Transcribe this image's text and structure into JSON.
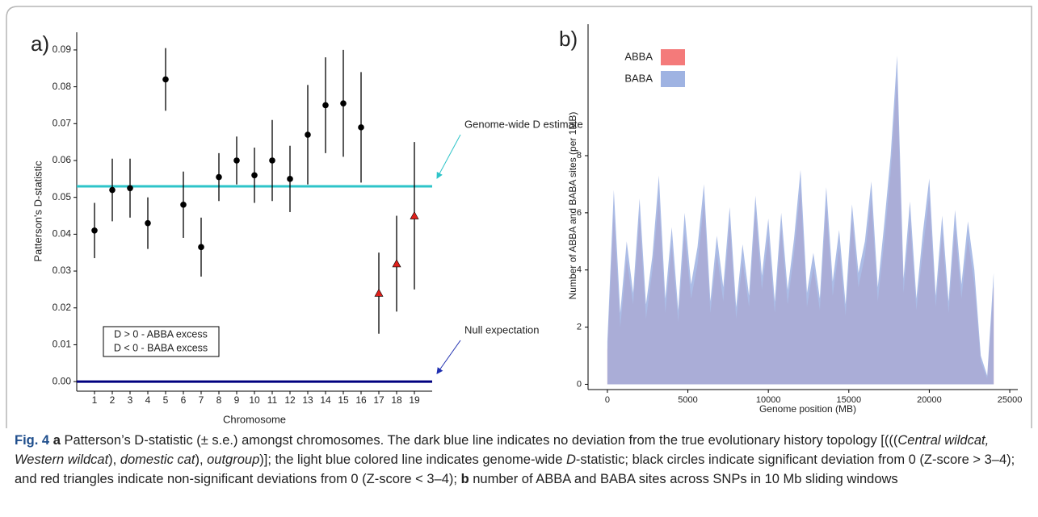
{
  "chart_data": [
    {
      "type": "scatter",
      "panel_label": "a)",
      "ylabel": "Patterson's D-statistic",
      "xlabel": "Chromosome",
      "categories": [
        "1",
        "2",
        "3",
        "4",
        "5",
        "6",
        "7",
        "8",
        "9",
        "10",
        "11",
        "12",
        "13",
        "14",
        "15",
        "16",
        "17",
        "18",
        "19"
      ],
      "values": [
        0.041,
        0.052,
        0.0525,
        0.043,
        0.082,
        0.048,
        0.0365,
        0.0555,
        0.06,
        0.056,
        0.06,
        0.055,
        0.067,
        0.075,
        0.0755,
        0.069,
        0.024,
        0.032,
        0.045
      ],
      "errors": [
        0.0075,
        0.0085,
        0.008,
        0.007,
        0.0085,
        0.009,
        0.008,
        0.0065,
        0.0065,
        0.0075,
        0.011,
        0.009,
        0.0135,
        0.013,
        0.0145,
        0.015,
        0.011,
        0.013,
        0.02
      ],
      "markers": [
        "circle",
        "circle",
        "circle",
        "circle",
        "circle",
        "circle",
        "circle",
        "circle",
        "circle",
        "circle",
        "circle",
        "circle",
        "circle",
        "circle",
        "circle",
        "circle",
        "triangle",
        "triangle",
        "triangle"
      ],
      "marker_colors": {
        "circle": "#000000",
        "triangle": "#e0201b"
      },
      "ylim": [
        -0.0026,
        0.0948
      ],
      "yticks": [
        {
          "value": 0,
          "label": "0.00"
        },
        0.01,
        0.02,
        0.03,
        0.04,
        0.05,
        0.06,
        0.07,
        0.08,
        0.09
      ],
      "reference_lines": [
        {
          "value": 0.053,
          "color": "#2ec4c9",
          "label": "Genome-wide D estimate"
        },
        {
          "value": 0,
          "color": "#00007f",
          "label": "Null expectation"
        }
      ],
      "legend_box": [
        "D > 0 - ABBA excess",
        "D < 0 - BABA excess"
      ]
    },
    {
      "type": "area",
      "panel_label": "b)",
      "ylabel": "Number of ABBA and BABA sites (per 1MB)",
      "xlabel": "Genome position (MB)",
      "x": [
        0,
        400,
        800,
        1200,
        1600,
        2000,
        2400,
        2800,
        3200,
        3600,
        4000,
        4400,
        4800,
        5200,
        5600,
        6000,
        6400,
        6800,
        7200,
        7600,
        8000,
        8400,
        8800,
        9200,
        9600,
        10000,
        10400,
        10800,
        11200,
        11600,
        12000,
        12400,
        12800,
        13200,
        13600,
        14000,
        14400,
        14800,
        15200,
        15600,
        16000,
        16400,
        16800,
        17200,
        17600,
        18000,
        18400,
        18800,
        19200,
        19600,
        20000,
        20400,
        20800,
        21200,
        21600,
        22000,
        22400,
        22800,
        23200,
        23600,
        24000
      ],
      "series": [
        {
          "name": "ABBA",
          "color": "#f47a7a",
          "values": [
            1.2,
            6.0,
            2.0,
            4.4,
            2.8,
            5.9,
            2.3,
            4.0,
            6.6,
            2.5,
            4.9,
            2.2,
            5.3,
            3.0,
            4.2,
            6.4,
            2.5,
            4.6,
            2.9,
            5.7,
            2.3,
            4.3,
            2.7,
            6.1,
            3.3,
            5.2,
            2.5,
            5.5,
            2.8,
            4.6,
            6.9,
            2.7,
            4.1,
            2.6,
            6.3,
            3.1,
            4.8,
            2.4,
            5.8,
            3.4,
            4.5,
            6.5,
            2.9,
            5.0,
            7.4,
            10.8,
            3.2,
            5.8,
            2.6,
            4.7,
            6.6,
            2.7,
            5.3,
            2.5,
            5.5,
            3.0,
            5.1,
            3.5,
            0.8,
            0.2,
            3.4
          ]
        },
        {
          "name": "BABA",
          "color": "#9fb3e2",
          "values": [
            1.5,
            6.8,
            2.5,
            5.0,
            3.2,
            6.5,
            2.8,
            4.5,
            7.3,
            3.0,
            5.5,
            2.6,
            6.0,
            3.5,
            4.8,
            7.0,
            2.9,
            5.2,
            3.4,
            6.2,
            2.7,
            4.9,
            3.1,
            6.6,
            3.8,
            5.8,
            2.9,
            6.0,
            3.3,
            5.1,
            7.5,
            3.2,
            4.6,
            3.0,
            6.9,
            3.6,
            5.4,
            2.8,
            6.3,
            3.9,
            5.0,
            7.1,
            3.4,
            5.6,
            8.0,
            11.5,
            3.7,
            6.4,
            3.0,
            5.3,
            7.2,
            3.1,
            5.9,
            2.9,
            6.1,
            3.5,
            5.7,
            4.0,
            1.0,
            0.3,
            3.9
          ]
        }
      ],
      "xlim": [
        -1200,
        25500
      ],
      "xticks": [
        0,
        5000,
        10000,
        15000,
        20000,
        25000
      ],
      "ylim": [
        -0.1,
        12.6
      ],
      "yticks": [
        0,
        2,
        4,
        6,
        8
      ]
    }
  ],
  "caption": [
    {
      "text": "Fig. 4",
      "bold": true
    },
    {
      "text": " "
    },
    {
      "text": "a",
      "bold": true
    },
    {
      "text": " Patterson’s D-statistic (± s.e.) amongst chromosomes. The dark blue line indicates no deviation from the true evolutionary history topology [((("
    },
    {
      "text": "Central wildcat, Western wildcat",
      "italic": true
    },
    {
      "text": "), "
    },
    {
      "text": "domestic cat",
      "italic": true
    },
    {
      "text": "), "
    },
    {
      "text": "outgroup",
      "italic": true
    },
    {
      "text": ")]; the light blue colored line indicates genome-wide "
    },
    {
      "text": "D",
      "italic": true
    },
    {
      "text": "-statistic; black circles indicate significant deviation from 0 (Z-score > 3–4); and red triangles indicate non-significant deviations from 0 (Z-score < 3–4); "
    },
    {
      "text": "b",
      "bold": true
    },
    {
      "text": " number of ABBA and BABA sites across SNPs in 10 Mb sliding windows"
    }
  ]
}
